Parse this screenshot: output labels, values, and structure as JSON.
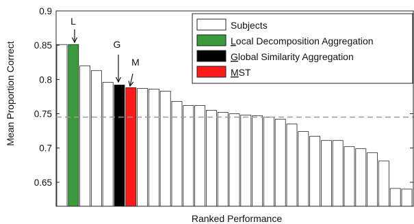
{
  "chart_data": {
    "type": "bar",
    "title": "",
    "xlabel": "Ranked Performance",
    "ylabel": "Mean Proportion Correct",
    "ylim": [
      0.615,
      0.9
    ],
    "yticks": [
      0.65,
      0.7,
      0.75,
      0.8,
      0.85,
      0.9
    ],
    "ytick_labels": [
      "0.65",
      "0.7",
      "0.75",
      "0.8",
      "0.85",
      "0.9"
    ],
    "grid": false,
    "reference_line": {
      "value": 0.745,
      "style": "dashed",
      "color": "#999999"
    },
    "bars": [
      {
        "value": 0.851,
        "series": "subjects"
      },
      {
        "value": 0.851,
        "series": "local"
      },
      {
        "value": 0.82,
        "series": "subjects"
      },
      {
        "value": 0.813,
        "series": "subjects"
      },
      {
        "value": 0.796,
        "series": "subjects"
      },
      {
        "value": 0.792,
        "series": "global"
      },
      {
        "value": 0.788,
        "series": "mst"
      },
      {
        "value": 0.787,
        "series": "subjects"
      },
      {
        "value": 0.786,
        "series": "subjects"
      },
      {
        "value": 0.783,
        "series": "subjects"
      },
      {
        "value": 0.768,
        "series": "subjects"
      },
      {
        "value": 0.762,
        "series": "subjects"
      },
      {
        "value": 0.762,
        "series": "subjects"
      },
      {
        "value": 0.755,
        "series": "subjects"
      },
      {
        "value": 0.752,
        "series": "subjects"
      },
      {
        "value": 0.75,
        "series": "subjects"
      },
      {
        "value": 0.748,
        "series": "subjects"
      },
      {
        "value": 0.747,
        "series": "subjects"
      },
      {
        "value": 0.745,
        "series": "subjects"
      },
      {
        "value": 0.742,
        "series": "subjects"
      },
      {
        "value": 0.735,
        "series": "subjects"
      },
      {
        "value": 0.724,
        "series": "subjects"
      },
      {
        "value": 0.717,
        "series": "subjects"
      },
      {
        "value": 0.711,
        "series": "subjects"
      },
      {
        "value": 0.711,
        "series": "subjects"
      },
      {
        "value": 0.702,
        "series": "subjects"
      },
      {
        "value": 0.699,
        "series": "subjects"
      },
      {
        "value": 0.693,
        "series": "subjects"
      },
      {
        "value": 0.681,
        "series": "subjects"
      },
      {
        "value": 0.641,
        "series": "subjects"
      },
      {
        "value": 0.64,
        "series": "subjects"
      }
    ],
    "series": [
      {
        "key": "subjects",
        "name": "Subjects",
        "color": "#ffffff"
      },
      {
        "key": "local",
        "name": "Local Decomposition Aggregation",
        "color": "#3a9a3c"
      },
      {
        "key": "global",
        "name": "Global Similarity Aggregation",
        "color": "#000000"
      },
      {
        "key": "mst",
        "name": "MST",
        "color": "#ff1a1a"
      }
    ],
    "legend": {
      "position": "top-right",
      "entries": [
        {
          "series": "subjects",
          "label": "Subjects",
          "accesskey": ""
        },
        {
          "series": "local",
          "label": "Local Decomposition Aggregation",
          "accesskey": "L"
        },
        {
          "series": "global",
          "label": "Global Similarity Aggregation",
          "accesskey": "G"
        },
        {
          "series": "mst",
          "label": "MST",
          "accesskey": "M"
        }
      ]
    },
    "annotations": [
      {
        "text": "L",
        "bar_index": 1
      },
      {
        "text": "G",
        "bar_index": 5
      },
      {
        "text": "M",
        "bar_index": 6
      }
    ]
  }
}
